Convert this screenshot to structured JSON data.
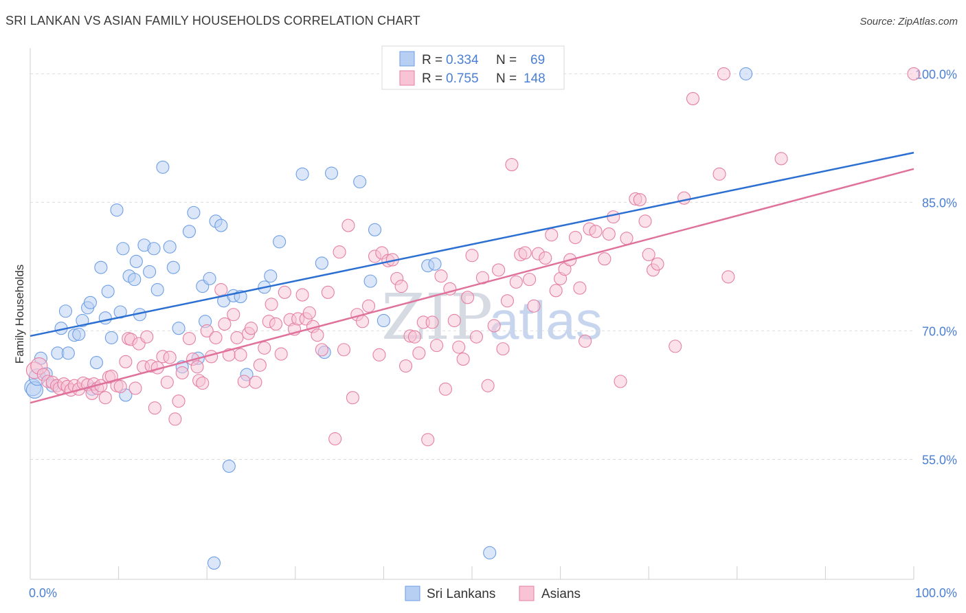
{
  "title": "SRI LANKAN VS ASIAN FAMILY HOUSEHOLDS CORRELATION CHART",
  "source": "Source: ZipAtlas.com",
  "watermark": {
    "zip": "ZIP",
    "atlas": "atlas"
  },
  "chart_data": {
    "type": "scatter",
    "title": "SRI LANKAN VS ASIAN FAMILY HOUSEHOLDS CORRELATION CHART",
    "ylabel": "Family Households",
    "xlabel": "",
    "xlim": [
      0,
      100
    ],
    "ylim": [
      41,
      103
    ],
    "x_tick_labels": [
      {
        "value": 0,
        "label": "0.0%"
      },
      {
        "value": 100,
        "label": "100.0%"
      }
    ],
    "y_ticks": [
      {
        "value": 55,
        "label": "55.0%"
      },
      {
        "value": 70,
        "label": "70.0%"
      },
      {
        "value": 85,
        "label": "85.0%"
      },
      {
        "value": 100,
        "label": "100.0%"
      }
    ],
    "legend": [
      {
        "series": "Sri Lankans",
        "r_label": "R =",
        "r": "0.334",
        "n_label": "N =",
        "n": "69"
      },
      {
        "series": "Asians",
        "r_label": "R =",
        "r": "0.755",
        "n_label": "N =",
        "n": "148"
      }
    ],
    "series": [
      {
        "name": "Sri Lankans",
        "color": "#6d9ee6",
        "fill": "#b7cff2",
        "trend": {
          "x0": 0,
          "y0": 69.4,
          "x1": 100,
          "y1": 90.8
        },
        "points": [
          [
            0.3,
            63.4
          ],
          [
            0.5,
            63.1
          ],
          [
            0.8,
            64.6
          ],
          [
            1.2,
            66.8
          ],
          [
            1.8,
            65.0
          ],
          [
            2.5,
            63.6
          ],
          [
            3.1,
            67.4
          ],
          [
            3.5,
            70.3
          ],
          [
            4.0,
            72.3
          ],
          [
            4.3,
            67.4
          ],
          [
            5.0,
            69.5
          ],
          [
            5.5,
            69.6
          ],
          [
            5.9,
            71.2
          ],
          [
            6.5,
            72.7
          ],
          [
            6.8,
            73.3
          ],
          [
            7.0,
            63.2
          ],
          [
            7.5,
            66.3
          ],
          [
            8.0,
            77.4
          ],
          [
            8.5,
            71.5
          ],
          [
            8.8,
            74.6
          ],
          [
            9.2,
            69.2
          ],
          [
            9.8,
            84.1
          ],
          [
            10.2,
            72.2
          ],
          [
            10.5,
            79.6
          ],
          [
            10.8,
            62.5
          ],
          [
            11.2,
            76.4
          ],
          [
            11.8,
            76.0
          ],
          [
            12.0,
            78.1
          ],
          [
            12.4,
            71.9
          ],
          [
            12.9,
            80.0
          ],
          [
            13.5,
            76.9
          ],
          [
            14.0,
            79.6
          ],
          [
            14.4,
            74.8
          ],
          [
            15.0,
            89.1
          ],
          [
            15.8,
            79.8
          ],
          [
            16.2,
            77.4
          ],
          [
            16.8,
            70.3
          ],
          [
            17.2,
            65.8
          ],
          [
            18.0,
            81.6
          ],
          [
            18.5,
            83.8
          ],
          [
            19.0,
            66.8
          ],
          [
            19.5,
            75.2
          ],
          [
            19.8,
            71.1
          ],
          [
            20.3,
            76.1
          ],
          [
            20.8,
            42.9
          ],
          [
            21.0,
            82.8
          ],
          [
            21.6,
            82.3
          ],
          [
            21.9,
            73.5
          ],
          [
            22.5,
            54.2
          ],
          [
            23.0,
            74.1
          ],
          [
            23.8,
            74.0
          ],
          [
            24.5,
            64.9
          ],
          [
            26.5,
            75.1
          ],
          [
            27.2,
            76.4
          ],
          [
            28.2,
            80.4
          ],
          [
            30.8,
            88.3
          ],
          [
            33.0,
            77.9
          ],
          [
            33.3,
            67.5
          ],
          [
            34.1,
            88.4
          ],
          [
            37.3,
            87.4
          ],
          [
            38.5,
            75.8
          ],
          [
            39.0,
            81.8
          ],
          [
            40.0,
            71.2
          ],
          [
            45.0,
            77.6
          ],
          [
            45.8,
            77.8
          ],
          [
            52.0,
            44.1
          ],
          [
            81.0,
            100.0
          ]
        ]
      },
      {
        "name": "Asians",
        "color": "#e57fa3",
        "fill": "#f7c3d5",
        "trend": {
          "x0": 0,
          "y0": 61.6,
          "x1": 100,
          "y1": 88.9
        },
        "points": [
          [
            0.5,
            65.4
          ],
          [
            1.0,
            65.9
          ],
          [
            1.5,
            64.9
          ],
          [
            2.0,
            64.1
          ],
          [
            2.5,
            64.0
          ],
          [
            3.0,
            63.6
          ],
          [
            3.3,
            63.3
          ],
          [
            3.8,
            63.8
          ],
          [
            4.2,
            63.5
          ],
          [
            4.6,
            63.1
          ],
          [
            5.0,
            63.6
          ],
          [
            5.5,
            63.2
          ],
          [
            6.0,
            63.9
          ],
          [
            6.5,
            63.7
          ],
          [
            7.0,
            62.7
          ],
          [
            7.2,
            63.8
          ],
          [
            7.6,
            63.3
          ],
          [
            8.0,
            63.6
          ],
          [
            8.5,
            62.2
          ],
          [
            8.9,
            64.6
          ],
          [
            9.2,
            64.7
          ],
          [
            9.8,
            63.6
          ],
          [
            10.2,
            63.5
          ],
          [
            10.8,
            66.4
          ],
          [
            11.1,
            69.1
          ],
          [
            11.4,
            69.0
          ],
          [
            11.9,
            63.3
          ],
          [
            12.3,
            68.5
          ],
          [
            12.8,
            65.8
          ],
          [
            13.2,
            69.3
          ],
          [
            13.7,
            65.9
          ],
          [
            14.1,
            61.0
          ],
          [
            14.4,
            65.7
          ],
          [
            15.0,
            67.0
          ],
          [
            15.5,
            64.0
          ],
          [
            15.8,
            66.9
          ],
          [
            16.4,
            59.7
          ],
          [
            16.8,
            61.8
          ],
          [
            17.2,
            65.1
          ],
          [
            18.0,
            69.1
          ],
          [
            18.4,
            66.7
          ],
          [
            18.9,
            65.8
          ],
          [
            19.1,
            64.2
          ],
          [
            19.5,
            63.9
          ],
          [
            20.0,
            70.0
          ],
          [
            20.5,
            67.0
          ],
          [
            21.0,
            69.2
          ],
          [
            21.6,
            74.8
          ],
          [
            22.0,
            70.8
          ],
          [
            22.5,
            67.2
          ],
          [
            23.0,
            71.9
          ],
          [
            23.4,
            69.2
          ],
          [
            23.8,
            67.2
          ],
          [
            24.2,
            64.1
          ],
          [
            24.7,
            69.7
          ],
          [
            25.0,
            70.3
          ],
          [
            25.5,
            64.0
          ],
          [
            26.0,
            66.0
          ],
          [
            26.5,
            68.0
          ],
          [
            27.0,
            71.1
          ],
          [
            27.3,
            73.1
          ],
          [
            27.8,
            70.8
          ],
          [
            28.4,
            67.3
          ],
          [
            28.8,
            74.5
          ],
          [
            29.4,
            71.3
          ],
          [
            29.9,
            70.2
          ],
          [
            30.3,
            71.4
          ],
          [
            30.8,
            74.2
          ],
          [
            31.2,
            71.4
          ],
          [
            31.6,
            72.1
          ],
          [
            32.0,
            70.5
          ],
          [
            32.5,
            69.5
          ],
          [
            33.0,
            67.8
          ],
          [
            33.7,
            74.5
          ],
          [
            34.5,
            57.4
          ],
          [
            35.0,
            79.2
          ],
          [
            35.5,
            67.8
          ],
          [
            36.0,
            82.3
          ],
          [
            36.5,
            62.2
          ],
          [
            37.0,
            71.9
          ],
          [
            37.6,
            71.1
          ],
          [
            38.3,
            72.9
          ],
          [
            39.0,
            78.7
          ],
          [
            39.5,
            67.2
          ],
          [
            39.8,
            79.1
          ],
          [
            40.5,
            78.2
          ],
          [
            41.0,
            78.3
          ],
          [
            41.5,
            76.1
          ],
          [
            42.0,
            75.2
          ],
          [
            42.5,
            65.9
          ],
          [
            43.0,
            69.4
          ],
          [
            43.5,
            69.3
          ],
          [
            44.0,
            67.4
          ],
          [
            44.5,
            71.0
          ],
          [
            45.0,
            57.3
          ],
          [
            45.5,
            71.0
          ],
          [
            46.0,
            68.3
          ],
          [
            46.5,
            76.4
          ],
          [
            47.0,
            63.2
          ],
          [
            47.5,
            74.9
          ],
          [
            48.0,
            71.2
          ],
          [
            48.5,
            68.1
          ],
          [
            49.0,
            66.7
          ],
          [
            49.5,
            73.9
          ],
          [
            50.0,
            78.8
          ],
          [
            50.5,
            69.3
          ],
          [
            51.2,
            76.2
          ],
          [
            51.8,
            63.6
          ],
          [
            52.5,
            70.6
          ],
          [
            53.0,
            77.1
          ],
          [
            53.5,
            67.9
          ],
          [
            54.0,
            73.5
          ],
          [
            54.5,
            89.4
          ],
          [
            55.0,
            75.7
          ],
          [
            55.5,
            78.9
          ],
          [
            56.0,
            79.1
          ],
          [
            56.5,
            76.0
          ],
          [
            57.0,
            72.9
          ],
          [
            57.5,
            79.0
          ],
          [
            58.3,
            78.5
          ],
          [
            59.0,
            81.2
          ],
          [
            59.5,
            74.7
          ],
          [
            60.0,
            76.1
          ],
          [
            60.5,
            77.2
          ],
          [
            61.1,
            78.3
          ],
          [
            61.7,
            80.9
          ],
          [
            62.2,
            75.0
          ],
          [
            62.8,
            68.8
          ],
          [
            63.3,
            81.9
          ],
          [
            64.0,
            81.6
          ],
          [
            65.0,
            78.4
          ],
          [
            65.5,
            81.3
          ],
          [
            66.0,
            83.3
          ],
          [
            66.8,
            64.1
          ],
          [
            67.5,
            80.8
          ],
          [
            68.5,
            85.4
          ],
          [
            69.0,
            85.3
          ],
          [
            69.6,
            82.8
          ],
          [
            70.0,
            78.9
          ],
          [
            70.5,
            77.1
          ],
          [
            71.0,
            77.8
          ],
          [
            73.0,
            68.2
          ],
          [
            74.0,
            85.5
          ],
          [
            75.0,
            97.1
          ],
          [
            78.0,
            88.3
          ],
          [
            78.5,
            100.0
          ],
          [
            79.0,
            76.3
          ],
          [
            85.0,
            90.1
          ],
          [
            100.0,
            100.0
          ]
        ]
      }
    ]
  },
  "bottom_legend": [
    {
      "label": "Sri Lankans"
    },
    {
      "label": "Asians"
    }
  ]
}
